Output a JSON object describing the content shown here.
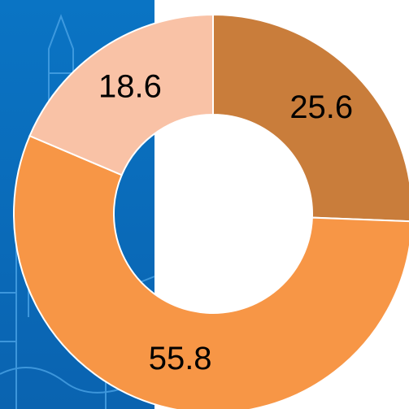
{
  "chart_data": {
    "type": "donut",
    "values": [
      25.6,
      55.8,
      18.6
    ],
    "colors": [
      "#c97d3b",
      "#f79646",
      "#f9c2a6"
    ]
  }
}
